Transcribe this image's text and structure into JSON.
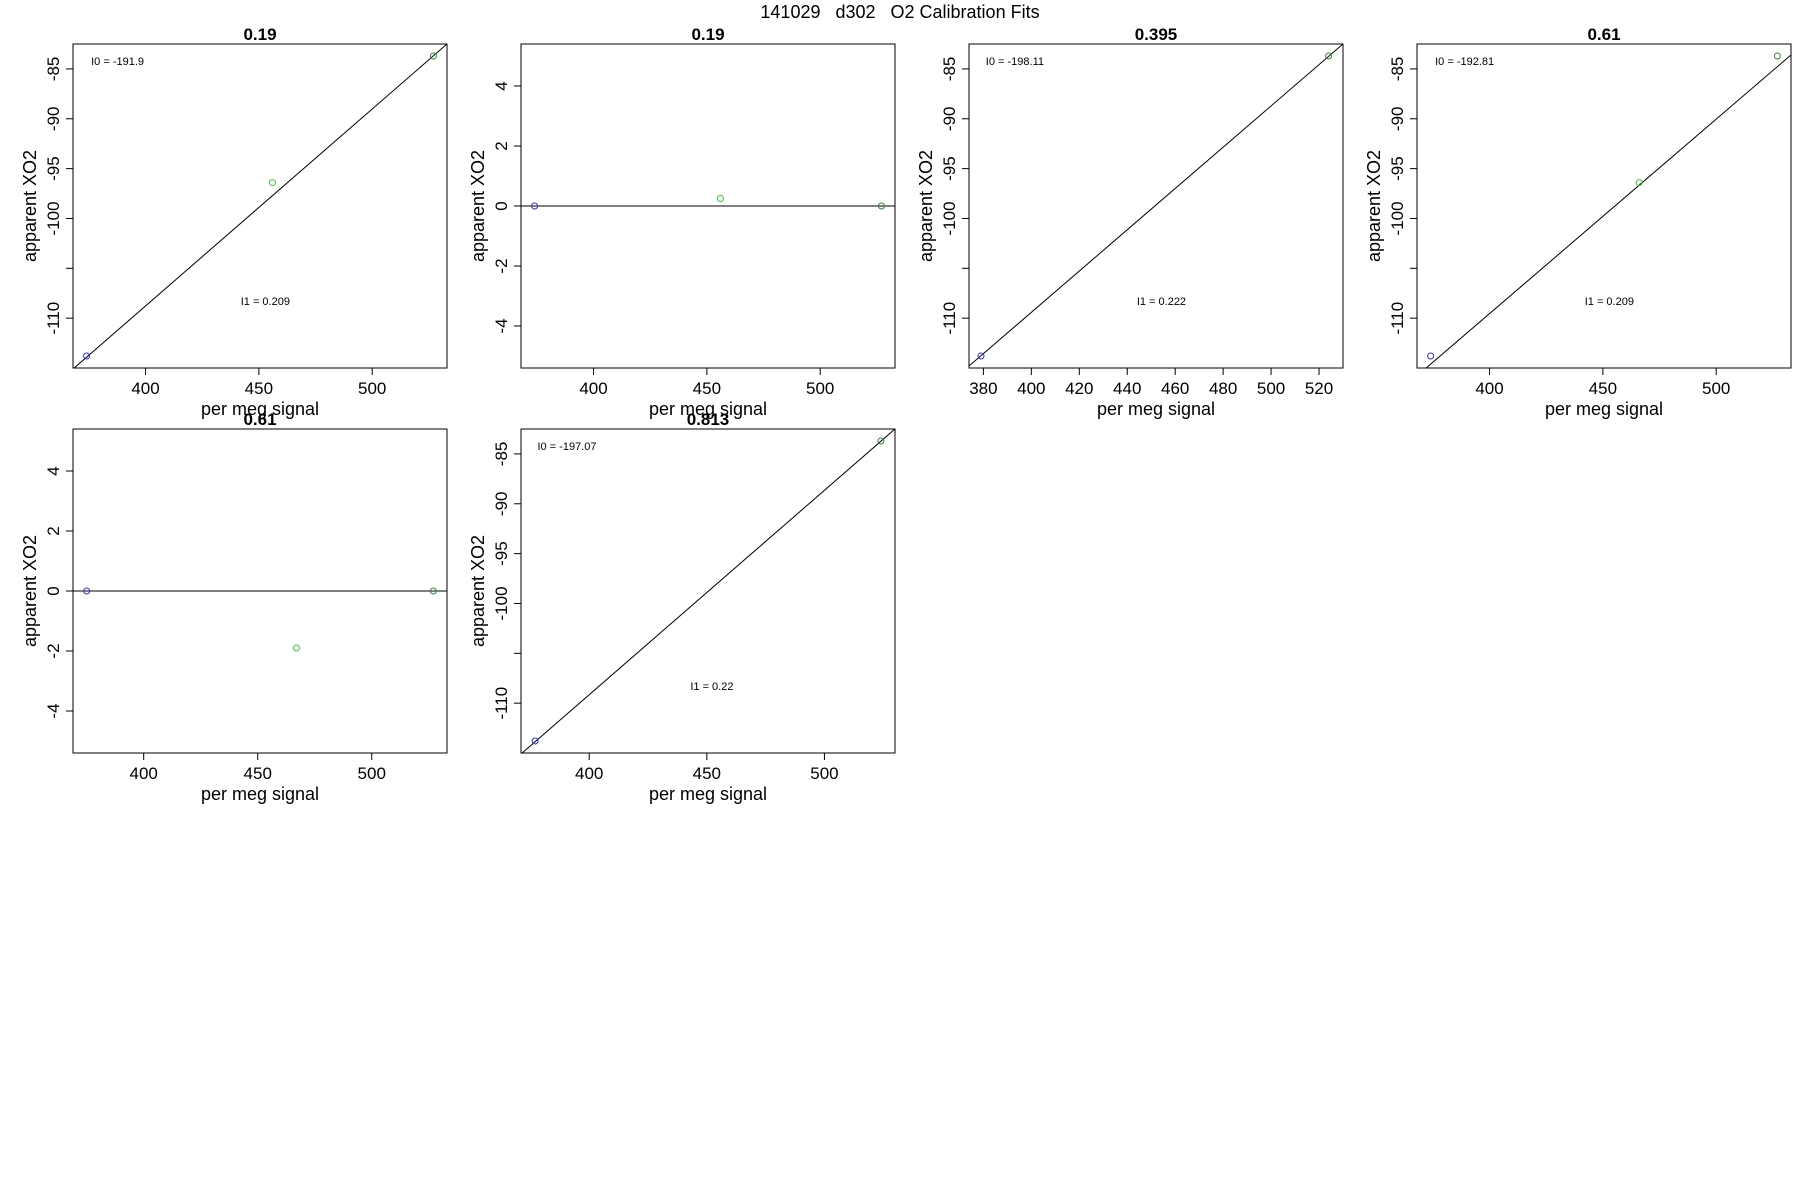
{
  "figure_title": "141029   d302   O2 Calibration Fits",
  "chart_data": [
    {
      "type": "scatter",
      "title": "0.19",
      "xlabel": "per meg signal",
      "ylabel": "apparent XO2",
      "xlim": [
        368,
        533
      ],
      "ylim": [
        -115,
        -82.5
      ],
      "xticks": [
        400,
        450,
        500
      ],
      "yticks": [
        -110,
        -105,
        -100,
        -95,
        -90,
        -85
      ],
      "ytick_labels": [
        "-110",
        "",
        "-100",
        "-95",
        "-90",
        "-85"
      ],
      "points": [
        {
          "x": 374,
          "y": -113.8,
          "color": "#3333cc"
        },
        {
          "x": 456,
          "y": -96.4,
          "color": "#33cc33"
        },
        {
          "x": 527,
          "y": -83.7,
          "color": "#338833"
        }
      ],
      "fit_line": {
        "x": [
          368,
          533
        ],
        "y": [
          -115.1,
          -82.5
        ]
      },
      "annotations": [
        {
          "text": "I0 =  -191.9",
          "x": 376,
          "y": -84.6
        },
        {
          "text": "I1 =  0.209",
          "x": 442,
          "y": -108.7
        }
      ]
    },
    {
      "type": "scatter",
      "title": "0.19",
      "xlabel": "per meg signal",
      "ylabel": "apparent XO2",
      "xlim": [
        368,
        533
      ],
      "ylim": [
        -5.4,
        5.4
      ],
      "xticks": [
        400,
        450,
        500
      ],
      "yticks": [
        -4,
        -2,
        0,
        2,
        4
      ],
      "ytick_labels": [
        "-4",
        "-2",
        "0",
        "2",
        "4"
      ],
      "points": [
        {
          "x": 374,
          "y": 0,
          "color": "#3333cc"
        },
        {
          "x": 456,
          "y": 0.25,
          "color": "#33cc33"
        },
        {
          "x": 527,
          "y": 0,
          "color": "#338833"
        }
      ],
      "fit_line": {
        "x": [
          368,
          533
        ],
        "y": [
          0,
          0
        ]
      },
      "annotations": []
    },
    {
      "type": "scatter",
      "title": "0.395",
      "xlabel": "per meg signal",
      "ylabel": "apparent XO2",
      "xlim": [
        374,
        530
      ],
      "ylim": [
        -115,
        -82.5
      ],
      "xticks": [
        380,
        400,
        420,
        440,
        460,
        480,
        500,
        520
      ],
      "yticks": [
        -110,
        -105,
        -100,
        -95,
        -90,
        -85
      ],
      "ytick_labels": [
        "-110",
        "",
        "-100",
        "-95",
        "-90",
        "-85"
      ],
      "points": [
        {
          "x": 379,
          "y": -113.8,
          "color": "#3333cc"
        },
        {
          "x": 524,
          "y": -83.7,
          "color": "#338833"
        }
      ],
      "fit_line": {
        "x": [
          374,
          530
        ],
        "y": [
          -114.8,
          -82.5
        ]
      },
      "annotations": [
        {
          "text": "I0 =  -198.11",
          "x": 381,
          "y": -84.6
        },
        {
          "text": "I1 =  0.222",
          "x": 444,
          "y": -108.7
        }
      ]
    },
    {
      "type": "scatter",
      "title": "0.61",
      "xlabel": "per meg signal",
      "ylabel": "apparent XO2",
      "xlim": [
        368,
        533
      ],
      "ylim": [
        -115,
        -82.5
      ],
      "xticks": [
        400,
        450,
        500
      ],
      "yticks": [
        -110,
        -105,
        -100,
        -95,
        -90,
        -85
      ],
      "ytick_labels": [
        "-110",
        "",
        "-100",
        "-95",
        "-90",
        "-85"
      ],
      "points": [
        {
          "x": 374,
          "y": -113.8,
          "color": "#3333cc"
        },
        {
          "x": 466,
          "y": -96.4,
          "color": "#33cc33"
        },
        {
          "x": 527,
          "y": -83.7,
          "color": "#338833"
        }
      ],
      "fit_line": {
        "x": [
          371,
          533
        ],
        "y": [
          -115.2,
          -83.6
        ]
      },
      "annotations": [
        {
          "text": "I0 =  -192.81",
          "x": 376,
          "y": -84.6
        },
        {
          "text": "I1 =  0.209",
          "x": 442,
          "y": -108.7
        }
      ]
    },
    {
      "type": "scatter",
      "title": "0.61",
      "xlabel": "per meg signal",
      "ylabel": "apparent XO2",
      "xlim": [
        369,
        533
      ],
      "ylim": [
        -5.4,
        5.4
      ],
      "xticks": [
        400,
        450,
        500
      ],
      "yticks": [
        -4,
        -2,
        0,
        2,
        4
      ],
      "ytick_labels": [
        "-4",
        "-2",
        "0",
        "2",
        "4"
      ],
      "points": [
        {
          "x": 375,
          "y": 0,
          "color": "#3333cc"
        },
        {
          "x": 467,
          "y": -1.9,
          "color": "#33cc33"
        },
        {
          "x": 527,
          "y": 0,
          "color": "#338833"
        }
      ],
      "fit_line": {
        "x": [
          369,
          533
        ],
        "y": [
          0,
          0
        ]
      },
      "annotations": []
    },
    {
      "type": "scatter",
      "title": "0.813",
      "xlabel": "per meg signal",
      "ylabel": "apparent XO2",
      "xlim": [
        371,
        530
      ],
      "ylim": [
        -115,
        -82.5
      ],
      "xticks": [
        400,
        450,
        500
      ],
      "yticks": [
        -110,
        -105,
        -100,
        -95,
        -90,
        -85
      ],
      "ytick_labels": [
        "-110",
        "",
        "-100",
        "-95",
        "-90",
        "-85"
      ],
      "points": [
        {
          "x": 377,
          "y": -113.8,
          "color": "#3333cc"
        },
        {
          "x": 524,
          "y": -83.7,
          "color": "#338833"
        }
      ],
      "fit_line": {
        "x": [
          371,
          530
        ],
        "y": [
          -115.1,
          -82.5
        ]
      },
      "annotations": [
        {
          "text": "I0 =  -197.07",
          "x": 378,
          "y": -84.6
        },
        {
          "text": "I1 =  0.22",
          "x": 443,
          "y": -108.7
        }
      ]
    }
  ]
}
